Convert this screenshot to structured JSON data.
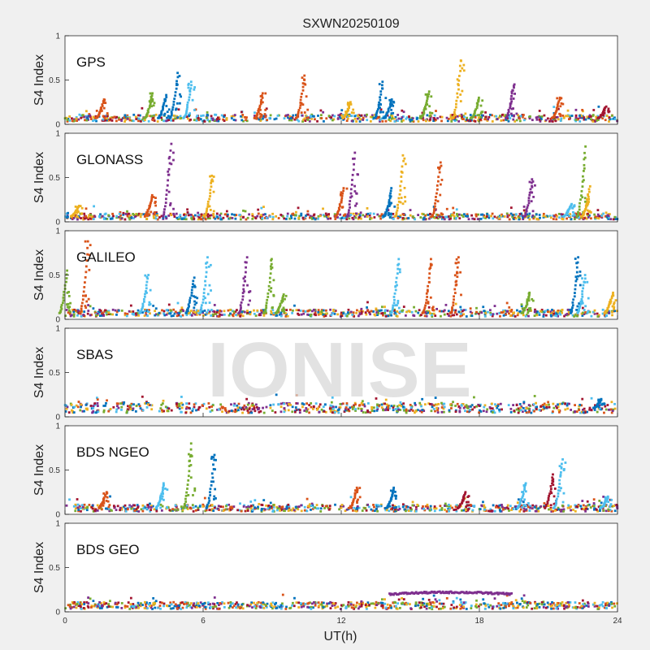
{
  "chart_data": {
    "type": "scatter",
    "title": "SXWN20250109",
    "xlabel": "UT(h)",
    "ylabel": "S4 Index",
    "xlim": [
      0,
      24
    ],
    "ylim": [
      0,
      1
    ],
    "x_ticks": [
      "0",
      "6",
      "12",
      "18",
      "24"
    ],
    "y_ticks": [
      "0",
      "0.5",
      "1"
    ],
    "watermark": "IONISE",
    "series_colors": [
      "#0072bd",
      "#d95319",
      "#edb120",
      "#7e2f8e",
      "#77ac30",
      "#4dbeee",
      "#a2142f"
    ],
    "panels": [
      {
        "name": "GPS",
        "baseline": 0.07,
        "spikes": [
          [
            1.7,
            0.28,
            1
          ],
          [
            3.8,
            0.35,
            4
          ],
          [
            4.4,
            0.33,
            0
          ],
          [
            4.9,
            0.58,
            0
          ],
          [
            5.5,
            0.48,
            5
          ],
          [
            8.6,
            0.35,
            1
          ],
          [
            10.4,
            0.55,
            1
          ],
          [
            12.4,
            0.25,
            2
          ],
          [
            13.8,
            0.48,
            0
          ],
          [
            14.2,
            0.28,
            0
          ],
          [
            15.8,
            0.37,
            4
          ],
          [
            17.2,
            0.72,
            2
          ],
          [
            18.0,
            0.3,
            4
          ],
          [
            19.5,
            0.45,
            3
          ],
          [
            21.5,
            0.3,
            1
          ],
          [
            23.5,
            0.2,
            6
          ]
        ]
      },
      {
        "name": "GLONASS",
        "baseline": 0.06,
        "spikes": [
          [
            0.6,
            0.18,
            2
          ],
          [
            3.8,
            0.3,
            1
          ],
          [
            4.6,
            0.88,
            3
          ],
          [
            6.4,
            0.52,
            2
          ],
          [
            12.1,
            0.38,
            1
          ],
          [
            12.6,
            0.78,
            3
          ],
          [
            14.2,
            0.38,
            0
          ],
          [
            14.7,
            0.75,
            2
          ],
          [
            16.3,
            0.67,
            1
          ],
          [
            20.3,
            0.48,
            3
          ],
          [
            22.0,
            0.2,
            5
          ],
          [
            22.6,
            0.85,
            4
          ],
          [
            22.8,
            0.4,
            2
          ]
        ]
      },
      {
        "name": "GALILEO",
        "baseline": 0.07,
        "spikes": [
          [
            0.1,
            0.55,
            4
          ],
          [
            1.0,
            0.88,
            1
          ],
          [
            3.6,
            0.5,
            5
          ],
          [
            5.6,
            0.47,
            0
          ],
          [
            6.2,
            0.7,
            5
          ],
          [
            7.9,
            0.7,
            3
          ],
          [
            9.0,
            0.68,
            4
          ],
          [
            9.5,
            0.28,
            4
          ],
          [
            14.5,
            0.68,
            5
          ],
          [
            15.9,
            0.68,
            1
          ],
          [
            17.1,
            0.7,
            1
          ],
          [
            20.2,
            0.3,
            4
          ],
          [
            22.3,
            0.7,
            0
          ],
          [
            22.6,
            0.5,
            5
          ],
          [
            23.8,
            0.3,
            2
          ]
        ]
      },
      {
        "name": "SBAS",
        "baseline": 0.1,
        "spikes": [
          [
            23.3,
            0.2,
            0
          ]
        ]
      },
      {
        "name": "BDS NGEO",
        "baseline": 0.07,
        "spikes": [
          [
            1.8,
            0.25,
            1
          ],
          [
            4.3,
            0.35,
            5
          ],
          [
            5.5,
            0.8,
            4
          ],
          [
            6.5,
            0.67,
            0
          ],
          [
            12.7,
            0.3,
            1
          ],
          [
            14.3,
            0.3,
            0
          ],
          [
            17.4,
            0.25,
            6
          ],
          [
            20.0,
            0.35,
            5
          ],
          [
            21.2,
            0.45,
            6
          ],
          [
            21.6,
            0.62,
            5
          ],
          [
            23.6,
            0.2,
            5
          ]
        ]
      },
      {
        "name": "BDS GEO",
        "baseline": 0.07,
        "spikes": [],
        "arc": {
          "x_start": 14.1,
          "x_end": 19.4,
          "y": 0.2,
          "color_index": 3
        }
      }
    ]
  }
}
